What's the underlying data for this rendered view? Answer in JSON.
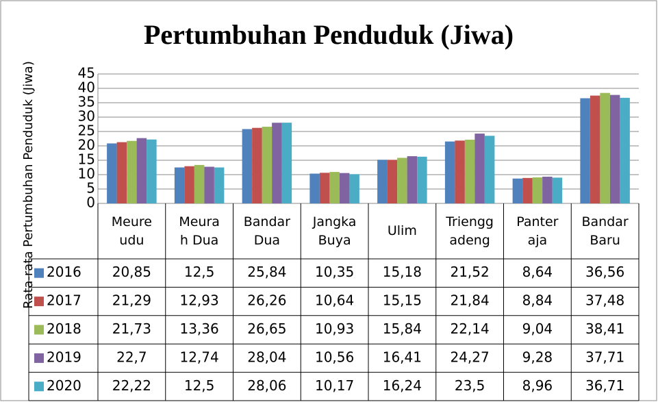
{
  "chart_data": {
    "type": "bar",
    "title": "Pertumbuhan Penduduk (Jiwa)",
    "y_axis_label": "Rata-rata Pertumbuhan Penduduk (Jiwa)",
    "categories": [
      "Meureudu",
      "Meurah Dua",
      "Bandar Dua",
      "Jangka Buya",
      "Ulim",
      "Trienggadeng",
      "Panteraja",
      "Bandar Baru"
    ],
    "series": [
      {
        "name": "2016",
        "color": "#4f81bd",
        "values": [
          20.85,
          12.5,
          25.84,
          10.35,
          15.18,
          21.52,
          8.64,
          36.56
        ],
        "value_labels": [
          "20,85",
          "12,5",
          "25,84",
          "10,35",
          "15,18",
          "21,52",
          "8,64",
          "36,56"
        ]
      },
      {
        "name": "2017",
        "color": "#c0504d",
        "values": [
          21.29,
          12.93,
          26.26,
          10.64,
          15.15,
          21.84,
          8.84,
          37.48
        ],
        "value_labels": [
          "21,29",
          "12,93",
          "26,26",
          "10,64",
          "15,15",
          "21,84",
          "8,84",
          "37,48"
        ]
      },
      {
        "name": "2018",
        "color": "#9bbb59",
        "values": [
          21.73,
          13.36,
          26.65,
          10.93,
          15.84,
          22.14,
          9.04,
          38.41
        ],
        "value_labels": [
          "21,73",
          "13,36",
          "26,65",
          "10,93",
          "15,84",
          "22,14",
          "9,04",
          "38,41"
        ]
      },
      {
        "name": "2019",
        "color": "#8064a2",
        "values": [
          22.7,
          12.74,
          28.04,
          10.56,
          16.41,
          24.27,
          9.28,
          37.71
        ],
        "value_labels": [
          "22,7",
          "12,74",
          "28,04",
          "10,56",
          "16,41",
          "24,27",
          "9,28",
          "37,71"
        ]
      },
      {
        "name": "2020",
        "color": "#4bacc6",
        "values": [
          22.22,
          12.5,
          28.06,
          10.17,
          16.24,
          23.5,
          8.96,
          36.71
        ],
        "value_labels": [
          "22,22",
          "12,5",
          "28,06",
          "10,17",
          "16,24",
          "23,5",
          "8,96",
          "36,71"
        ]
      }
    ],
    "ylim": [
      0,
      45
    ],
    "yticks": [
      0,
      5,
      10,
      15,
      20,
      25,
      30,
      35,
      40,
      45
    ],
    "grid": true
  }
}
